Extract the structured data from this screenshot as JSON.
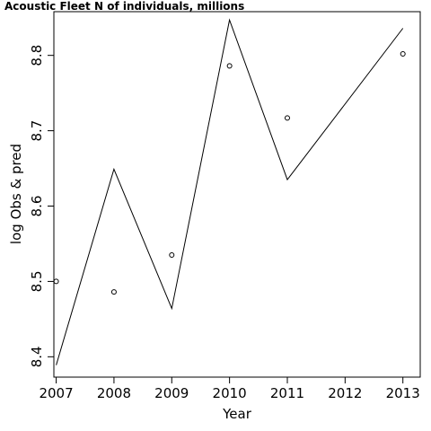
{
  "chart_data": {
    "type": "line",
    "title": "Acoustic Fleet   N of individuals, millions",
    "xlabel": "Year",
    "ylabel": "log Obs & pred",
    "xlim": [
      2006.96,
      2013.3
    ],
    "ylim": [
      8.373,
      8.858
    ],
    "x_ticks": [
      "2007",
      "2008",
      "2009",
      "2010",
      "2011",
      "2012",
      "2013"
    ],
    "y_ticks": [
      "8.4",
      "8.5",
      "8.6",
      "8.7",
      "8.8"
    ],
    "grid": false,
    "series": [
      {
        "style": "line",
        "x": [
          2007,
          2008,
          2009,
          2010,
          2011,
          2013
        ],
        "values": [
          8.389,
          8.649,
          8.464,
          8.847,
          8.635,
          8.836
        ]
      },
      {
        "style": "points",
        "x": [
          2007,
          2008,
          2009,
          2010,
          2011,
          2013
        ],
        "values": [
          8.5,
          8.486,
          8.535,
          8.786,
          8.717,
          8.802
        ]
      }
    ]
  }
}
